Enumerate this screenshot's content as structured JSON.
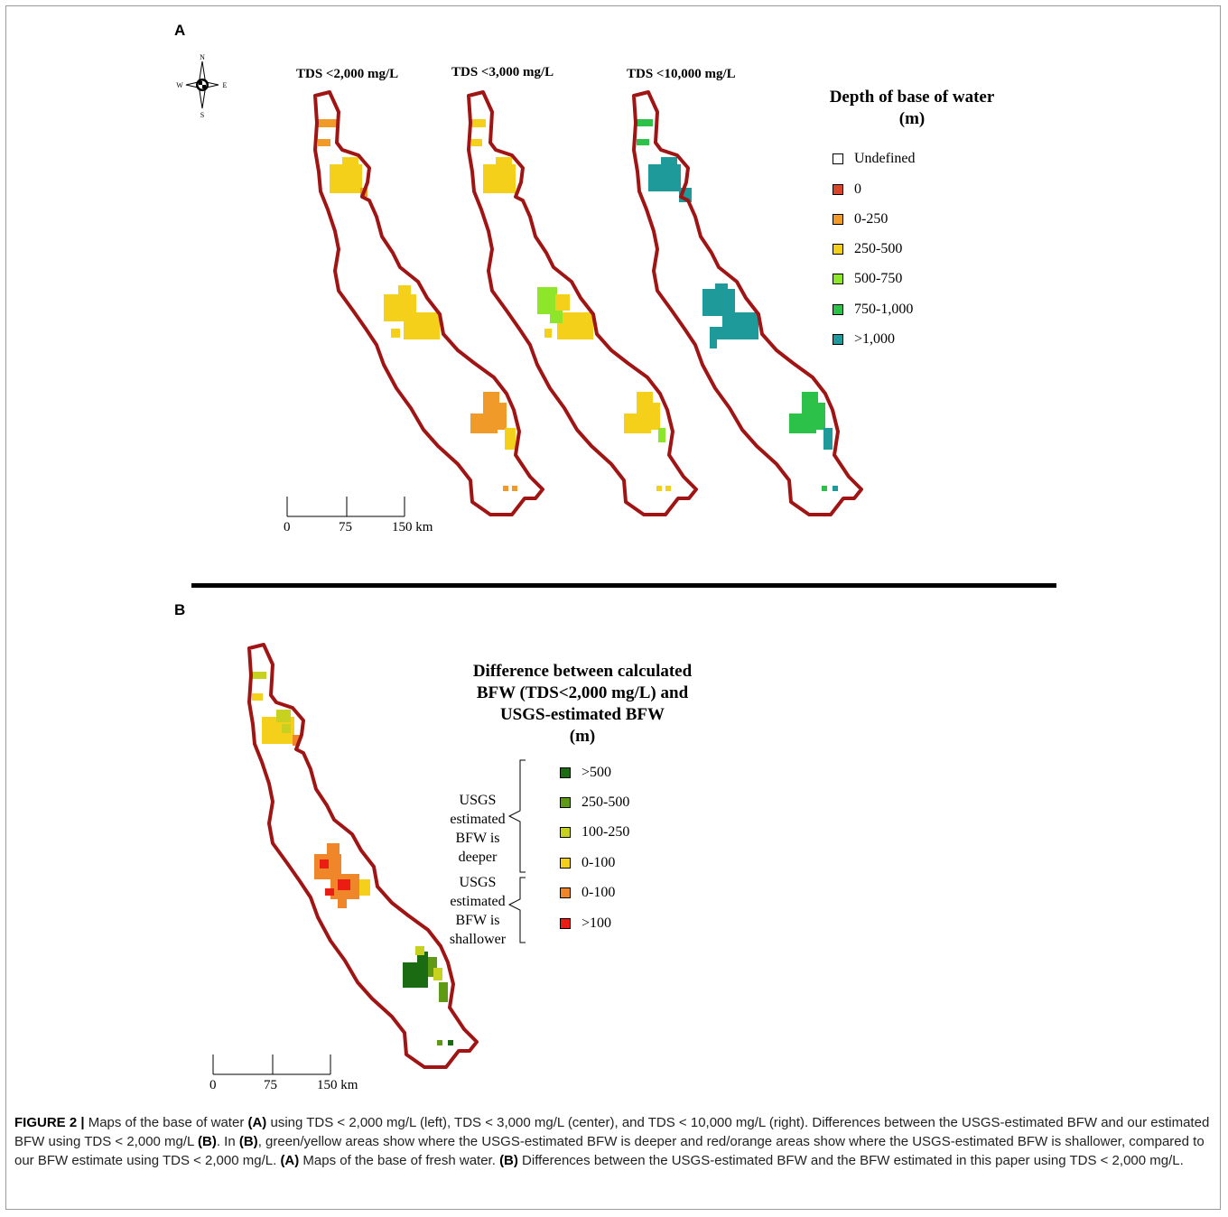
{
  "panel_a": {
    "label": "A",
    "compass": {
      "n": "N",
      "s": "S",
      "e": "E",
      "w": "W"
    },
    "maps": [
      {
        "title": "TDS <2,000 mg/L"
      },
      {
        "title": "TDS <3,000 mg/L"
      },
      {
        "title": "TDS <10,000 mg/L"
      }
    ],
    "legend": {
      "title_line1": "Depth of base of water",
      "title_line2": "(m)",
      "items": [
        {
          "label": "Undefined",
          "color": "#ffffff"
        },
        {
          "label": "0",
          "color": "#d9452b"
        },
        {
          "label": "0-250",
          "color": "#f09a2a"
        },
        {
          "label": "250-500",
          "color": "#f5d01a"
        },
        {
          "label": "500-750",
          "color": "#8ee62a"
        },
        {
          "label": "750-1,000",
          "color": "#2cc24a"
        },
        {
          "label": ">1,000",
          "color": "#1f9a9a"
        }
      ]
    },
    "scale": {
      "tick0": "0",
      "tick1": "75",
      "tick2": "150 km"
    }
  },
  "panel_b": {
    "label": "B",
    "legend": {
      "title_line1": "Difference between calculated",
      "title_line2": "BFW (TDS<2,000 mg/L) and",
      "title_line3": "USGS-estimated BFW",
      "title_line4": "(m)",
      "group_deeper": [
        "USGS",
        "estimated",
        "BFW is",
        "deeper"
      ],
      "group_shallower": [
        "USGS",
        "estimated",
        "BFW is",
        "shallower"
      ],
      "items": [
        {
          "label": ">500",
          "color": "#1a6b12"
        },
        {
          "label": "250-500",
          "color": "#5e9a16"
        },
        {
          "label": "100-250",
          "color": "#c6d21f"
        },
        {
          "label": "0-100",
          "color": "#f5d01a"
        },
        {
          "label": "0-100",
          "color": "#f0862a"
        },
        {
          "label": ">100",
          "color": "#ea1c14"
        }
      ]
    },
    "scale": {
      "tick0": "0",
      "tick1": "75",
      "tick2": "150 km"
    }
  },
  "outline_color": "#a01414",
  "caption": {
    "fig": "FIGURE 2 |",
    "p1": " Maps of the base of water ",
    "a1": "(A)",
    "p2": " using TDS < 2,000 mg/L (left), TDS < 3,000 mg/L (center), and TDS < 10,000 mg/L (right). Differences between the USGS-estimated BFW and our estimated BFW using TDS < 2,000 mg/L ",
    "b1": "(B)",
    "p3": ". In ",
    "b2": "(B)",
    "p4": ", green/yellow areas show where the USGS-estimated BFW is deeper and red/orange areas show where the USGS-estimated BFW is shallower, compared to our BFW estimate using TDS < 2,000 mg/L. ",
    "a2": "(A)",
    "p5": " Maps of the base of fresh water. ",
    "b3": "(B)",
    "p6": " Differences between the USGS-estimated BFW and the BFW estimated in this paper using TDS < 2,000 mg/L."
  }
}
